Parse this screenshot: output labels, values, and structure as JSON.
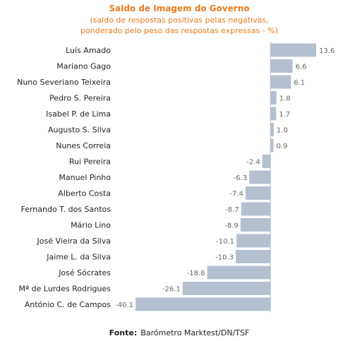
{
  "colors": {
    "bar": "#b4c0cf",
    "axis": "#b4c0cf",
    "title": "#e87b1e",
    "text": "#222222",
    "value_text": "#666666"
  },
  "chart_data": {
    "type": "bar",
    "orientation": "horizontal",
    "title": "Saldo de Imagem do Governo",
    "subtitle_lines": [
      "(saldo de respostas positivas pelas negativas,",
      "ponderado pelo peso das respostas expressas - %)"
    ],
    "categories": [
      "Luís Amado",
      "Mariano Gago",
      "Nuno Severiano Teixeira",
      "Pedro S. Pereira",
      "Isabel P. de Lima",
      "Augusto S. Silva",
      "Nunes Correia",
      "Rui Pereira",
      "Manuel Pinho",
      "Alberto Costa",
      "Fernando T. dos Santos",
      "Mário Lino",
      "José Vieira da Silva",
      "Jaime L. da Silva",
      "José Sócrates",
      "Mª de Lurdes Rodrigues",
      "António C. de Campos"
    ],
    "values": [
      13.6,
      6.6,
      6.1,
      1.8,
      1.7,
      1.0,
      0.9,
      -2.4,
      -6.3,
      -7.4,
      -8.7,
      -8.9,
      -10.1,
      -10.3,
      -18.8,
      -26.1,
      -40.1
    ],
    "value_labels": [
      "13.6",
      "6.6",
      "6.1",
      "1.8",
      "1.7",
      "1.0",
      "0.9",
      "-2.4",
      "-6.3",
      "-7.4",
      "-8.7",
      "-8.9",
      "-10.1",
      "-10.3",
      "-18.8",
      "-26.1",
      "-40.1"
    ],
    "xlim": [
      -40.1,
      13.6
    ],
    "grid": false,
    "legend": "none"
  },
  "source": {
    "label": "Fonte:",
    "text": "Barómetro Marktest/DN/TSF"
  }
}
